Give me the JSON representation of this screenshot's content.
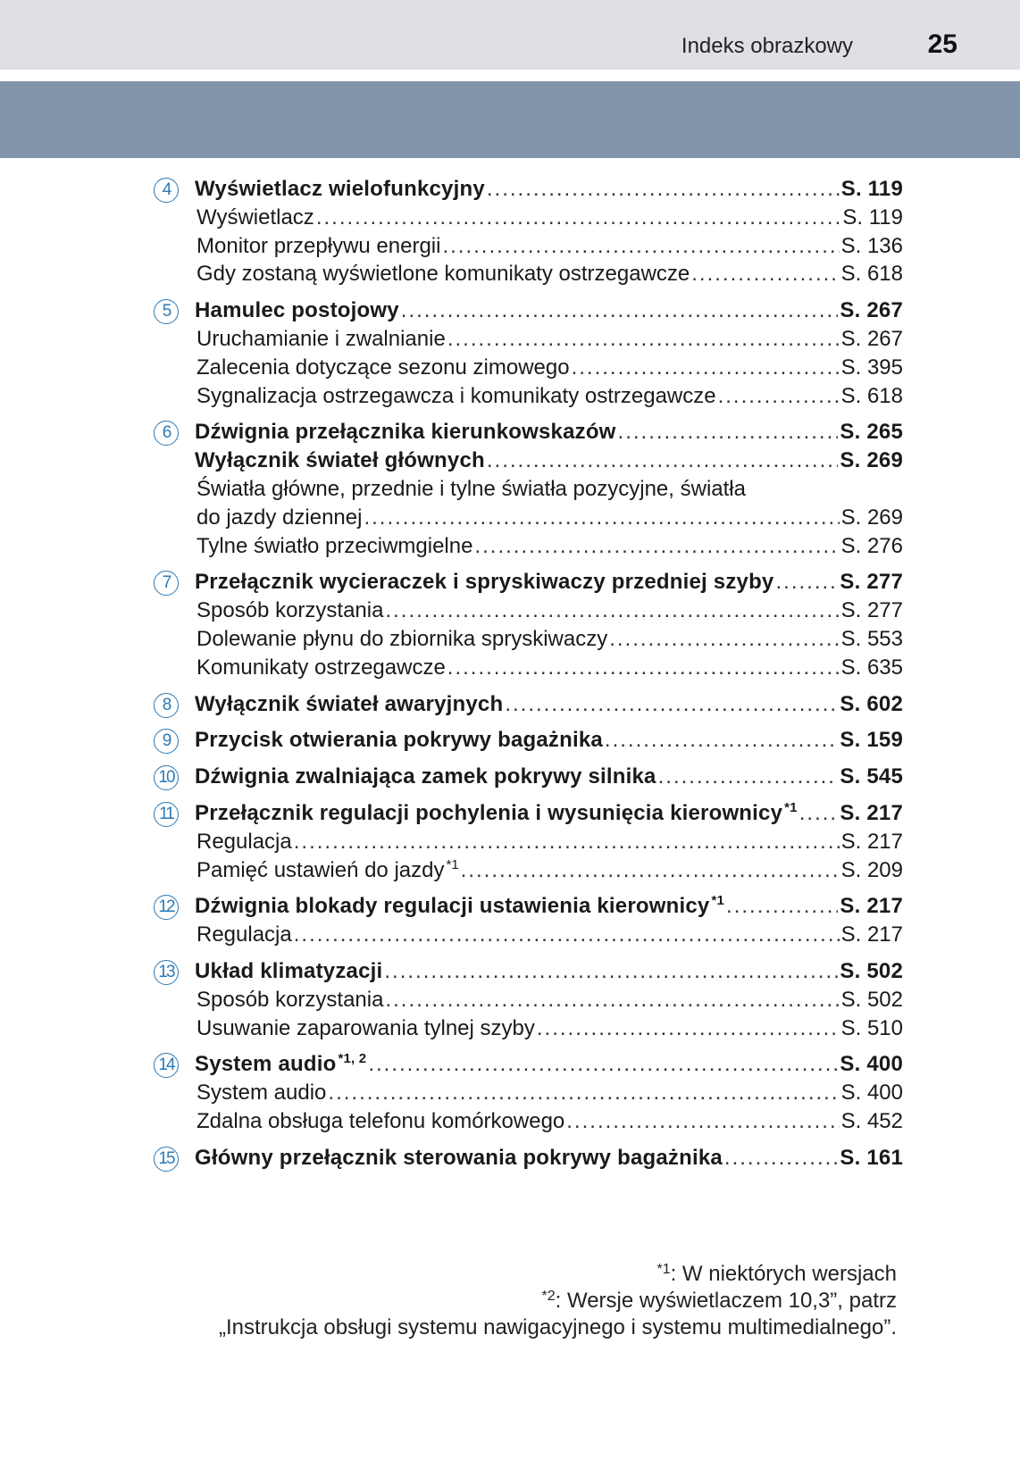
{
  "header": {
    "section_title": "Indeks obrazkowy",
    "page_number": "25"
  },
  "colors": {
    "header_bg": "#dfe0e5",
    "band": "#8294aa",
    "callout_number": "#2a7ab8"
  },
  "groups": [
    {
      "num": "4",
      "items": [
        {
          "level": "main",
          "text": "Wyświetlacz wielofunkcyjny",
          "page": "S. 119"
        },
        {
          "level": "sub",
          "text": "Wyświetlacz",
          "page": "S. 119"
        },
        {
          "level": "sub",
          "text": "Monitor przepływu energii",
          "page": "S. 136"
        },
        {
          "level": "sub",
          "text": "Gdy zostaną wyświetlone komunikaty ostrzegawcze",
          "page": "S. 618"
        }
      ]
    },
    {
      "num": "5",
      "items": [
        {
          "level": "main",
          "text": "Hamulec postojowy",
          "page": "S. 267"
        },
        {
          "level": "sub",
          "text": "Uruchamianie i zwalnianie",
          "page": "S. 267"
        },
        {
          "level": "sub",
          "text": "Zalecenia dotyczące sezonu zimowego",
          "page": "S. 395"
        },
        {
          "level": "sub",
          "text": "Sygnalizacja ostrzegawcza i komunikaty ostrzegawcze",
          "page": "S. 618"
        }
      ]
    },
    {
      "num": "6",
      "items": [
        {
          "level": "main",
          "text": "Dźwignia przełącznika kierunkowskazów",
          "page": "S. 265"
        },
        {
          "level": "main",
          "text": "Wyłącznik świateł głównych",
          "page": "S. 269"
        },
        {
          "level": "sub",
          "text": "Światła główne, przednie i tylne światła pozycyjne, światła",
          "page": ""
        },
        {
          "level": "sub",
          "text": "do jazdy dziennej",
          "page": "S. 269"
        },
        {
          "level": "sub",
          "text": "Tylne światło przeciwmgielne",
          "page": "S. 276"
        }
      ]
    },
    {
      "num": "7",
      "items": [
        {
          "level": "main",
          "text": "Przełącznik wycieraczek i spryskiwaczy przedniej szyby",
          "page": "S. 277"
        },
        {
          "level": "sub",
          "text": "Sposób korzystania",
          "page": "S. 277"
        },
        {
          "level": "sub",
          "text": "Dolewanie płynu do zbiornika spryskiwaczy",
          "page": "S. 553"
        },
        {
          "level": "sub",
          "text": "Komunikaty ostrzegawcze",
          "page": "S. 635"
        }
      ]
    },
    {
      "num": "8",
      "items": [
        {
          "level": "main",
          "text": "Wyłącznik świateł awaryjnych",
          "page": "S. 602"
        }
      ]
    },
    {
      "num": "9",
      "items": [
        {
          "level": "main",
          "text": "Przycisk otwierania pokrywy bagażnika",
          "page": "S. 159"
        }
      ]
    },
    {
      "num": "10",
      "items": [
        {
          "level": "main",
          "text": "Dźwignia zwalniająca zamek pokrywy silnika",
          "page": "S. 545"
        }
      ]
    },
    {
      "num": "11",
      "items": [
        {
          "level": "main",
          "text": "Przełącznik regulacji pochylenia i wysunięcia kierownicy",
          "sup": "*1",
          "page": "S. 217"
        },
        {
          "level": "sub",
          "text": "Regulacja",
          "page": "S. 217"
        },
        {
          "level": "sub",
          "text": "Pamięć ustawień do jazdy",
          "sup": "*1",
          "page": "S. 209"
        }
      ]
    },
    {
      "num": "12",
      "items": [
        {
          "level": "main",
          "text": "Dźwignia blokady regulacji ustawienia kierownicy",
          "sup": "*1",
          "page": "S. 217"
        },
        {
          "level": "sub",
          "text": "Regulacja",
          "page": "S. 217"
        }
      ]
    },
    {
      "num": "13",
      "items": [
        {
          "level": "main",
          "text": "Układ klimatyzacji",
          "page": "S. 502"
        },
        {
          "level": "sub",
          "text": "Sposób korzystania",
          "page": "S. 502"
        },
        {
          "level": "sub",
          "text": "Usuwanie zaparowania tylnej szyby",
          "page": "S. 510"
        }
      ]
    },
    {
      "num": "14",
      "items": [
        {
          "level": "main",
          "text": "System audio",
          "sup": "*1, 2",
          "page": "S. 400"
        },
        {
          "level": "sub",
          "text": "System audio",
          "page": "S. 400"
        },
        {
          "level": "sub",
          "text": "Zdalna obsługa telefonu komórkowego",
          "page": "S. 452"
        }
      ]
    },
    {
      "num": "15",
      "items": [
        {
          "level": "main",
          "text": "Główny przełącznik sterowania pokrywy bagażnika",
          "page": "S. 161"
        }
      ]
    }
  ],
  "footnotes": [
    {
      "mark": "*1",
      "text": ": W niektórych wersjach"
    },
    {
      "mark": "*2",
      "text": ": Wersje wyświetlaczem 10,3”, patrz"
    },
    {
      "mark": "",
      "text": "„Instrukcja obsługi systemu nawigacyjnego i systemu multimedialnego”."
    }
  ]
}
